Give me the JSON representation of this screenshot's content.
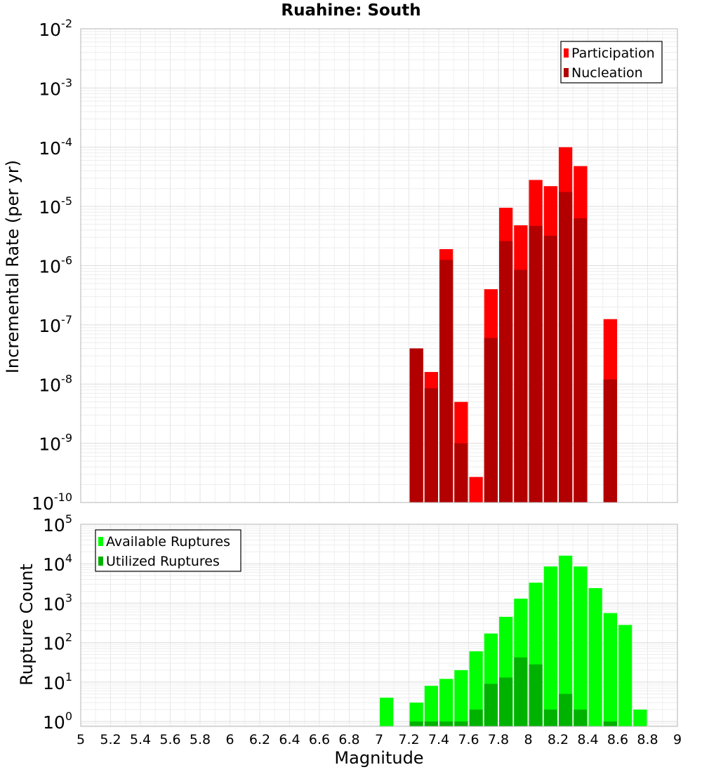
{
  "chart_data": [
    {
      "type": "bar",
      "title": "Ruahine: South",
      "xlabel": "",
      "ylabel": "Incremental Rate (per yr)",
      "yscale": "log",
      "ylim": [
        1e-10,
        0.01
      ],
      "xlim": [
        5,
        9
      ],
      "grid": true,
      "legend_position": "top-right",
      "x": [
        7.25,
        7.35,
        7.45,
        7.55,
        7.65,
        7.75,
        7.85,
        7.95,
        8.05,
        8.15,
        8.25,
        8.35,
        8.55
      ],
      "series": [
        {
          "name": "Participation",
          "color": "#ff0000",
          "values": [
            4e-08,
            1.6e-08,
            1.9e-06,
            5e-09,
            2.7e-10,
            4e-07,
            9.5e-06,
            4.8e-06,
            2.8e-05,
            2.2e-05,
            0.0001,
            4.8e-05,
            1.25e-07
          ]
        },
        {
          "name": "Nucleation",
          "color": "#b20000",
          "values": [
            4e-08,
            8.5e-09,
            1.25e-06,
            1e-09,
            null,
            6e-08,
            2.6e-06,
            8.5e-07,
            4.7e-06,
            3.2e-06,
            1.75e-05,
            6.3e-06,
            1.2e-08
          ]
        }
      ]
    },
    {
      "type": "bar",
      "xlabel": "Magnitude",
      "ylabel": "Rupture Count",
      "yscale": "log",
      "ylim": [
        0.75,
        100000.0
      ],
      "xlim": [
        5,
        9
      ],
      "xticks": [
        "5",
        "5.2",
        "5.4",
        "5.6",
        "5.8",
        "6",
        "6.2",
        "6.4",
        "6.6",
        "6.8",
        "7",
        "7.2",
        "7.4",
        "7.6",
        "7.8",
        "8",
        "8.2",
        "8.4",
        "8.6",
        "8.8",
        "9"
      ],
      "grid": true,
      "legend_position": "top-left",
      "x": [
        7.05,
        7.25,
        7.35,
        7.45,
        7.55,
        7.65,
        7.75,
        7.85,
        7.95,
        8.05,
        8.15,
        8.25,
        8.35,
        8.45,
        8.55,
        8.65,
        8.75
      ],
      "series": [
        {
          "name": "Available Ruptures",
          "color": "#00ff00",
          "values": [
            4,
            3,
            8,
            12,
            20,
            60,
            170,
            450,
            1300,
            3300,
            8500,
            16000,
            8500,
            2400,
            560,
            280,
            2
          ]
        },
        {
          "name": "Utilized Ruptures",
          "color": "#00b200",
          "values": [
            null,
            1,
            1,
            1,
            1,
            2,
            9,
            13,
            42,
            28,
            2,
            5,
            2,
            null,
            1,
            null,
            null
          ]
        }
      ]
    }
  ]
}
